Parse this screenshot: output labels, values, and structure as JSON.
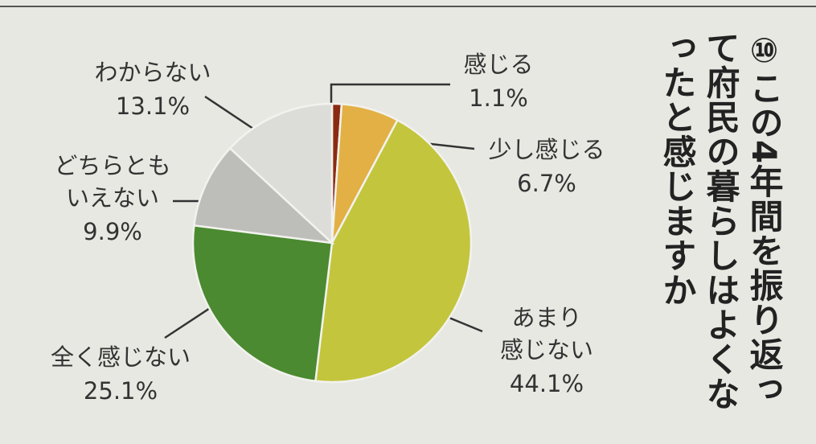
{
  "chart_data": {
    "type": "pie",
    "title": "⑩この4年間を振り返って府民の暮らしはよくなったと感じますか",
    "categories": [
      "感じる",
      "少し感じる",
      "あまり\n感じない",
      "全く感じない",
      "どちらとも\nいえない",
      "わからない"
    ],
    "values": [
      1.1,
      6.7,
      44.1,
      25.1,
      9.9,
      13.1
    ],
    "value_labels": [
      "1.1%",
      "6.7%",
      "44.1%",
      "25.1%",
      "9.9%",
      "13.1%"
    ],
    "colors": [
      "#8b2a12",
      "#e2b044",
      "#c3c53c",
      "#4b8a30",
      "#bdbdba",
      "#dcdcd8"
    ]
  }
}
